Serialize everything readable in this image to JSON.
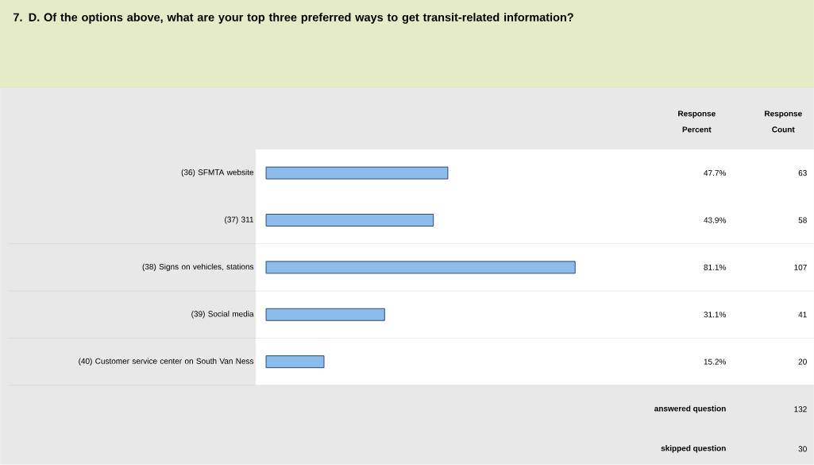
{
  "chart_data": {
    "type": "bar",
    "orientation": "horizontal",
    "title": "7. D. Of the options above, what are your top three preferred ways to get transit-related information?",
    "categories": [
      "(36) SFMTA website",
      "(37) 311",
      "(38) Signs on vehicles, stations",
      "(39) Social media",
      "(40) Customer service center on South Van Ness"
    ],
    "values": [
      47.7,
      43.9,
      81.1,
      31.1,
      15.2
    ],
    "value_labels": [
      "47.7%",
      "43.9%",
      "81.1%",
      "31.1%",
      "15.2%"
    ],
    "color": "#8cbcec",
    "annotations": [
      "Response Percent",
      "Response Count",
      "63",
      "58",
      "107",
      "41",
      "20",
      "answered question",
      "132",
      "skipped question",
      "30"
    ]
  }
}
